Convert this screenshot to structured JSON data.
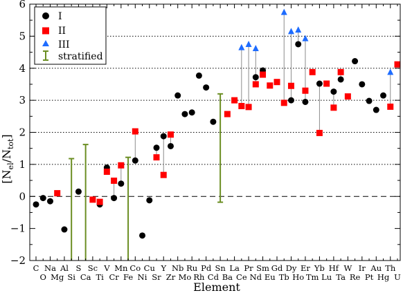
{
  "chart_data": {
    "type": "scatter",
    "xlabel": "Element",
    "ylabel": "[N_el/N_tot]",
    "ylabel_main": "[N",
    "ylabel_sub1": "el",
    "ylabel_mid": "/N",
    "ylabel_sub2": "tot",
    "ylabel_end": "]",
    "ylim": [
      -2,
      6
    ],
    "yticks": [
      -2,
      -1,
      0,
      1,
      2,
      3,
      4,
      5,
      6
    ],
    "dotted_grid": [
      1,
      2,
      3,
      4,
      5
    ],
    "dashed_line": 0,
    "elements": [
      "C",
      "O",
      "Na",
      "Mg",
      "Al",
      "Si",
      "S",
      "Ca",
      "Sc",
      "Ti",
      "V",
      "Cr",
      "Mn",
      "Fe",
      "Co",
      "Ni",
      "Cu",
      "Sr",
      "Y",
      "Zr",
      "Nb",
      "Mo",
      "Ru",
      "Rh",
      "Pd",
      "Cd",
      "Sn",
      "Ba",
      "La",
      "Ce",
      "Pr",
      "Nd",
      "Sm",
      "Eu",
      "Gd",
      "Tb",
      "Dy",
      "Ho",
      "Er",
      "Tm",
      "Yb",
      "Lu",
      "Hf",
      "Ta",
      "W",
      "Re",
      "Ir",
      "Pt",
      "Au",
      "Hg",
      "Th",
      "U"
    ],
    "legend": {
      "position": "top-left",
      "entries": [
        {
          "label": "I",
          "marker": "circle",
          "color": "#000000"
        },
        {
          "label": "II",
          "marker": "square",
          "color": "#ff0000"
        },
        {
          "label": "III",
          "marker": "triangle",
          "color": "#1e6cff"
        },
        {
          "label": "stratified",
          "marker": "errorbar",
          "color": "#6b8e23"
        }
      ]
    },
    "series": [
      {
        "name": "I",
        "marker": "circle",
        "color": "#000000",
        "points": [
          {
            "x": "C",
            "y": -0.25
          },
          {
            "x": "O",
            "y": -0.05
          },
          {
            "x": "Na",
            "y": -0.15
          },
          {
            "x": "Al",
            "y": -1.03
          },
          {
            "x": "S",
            "y": 0.15
          },
          {
            "x": "Ti",
            "y": -0.25
          },
          {
            "x": "V",
            "y": 0.9
          },
          {
            "x": "Cr",
            "y": -0.05
          },
          {
            "x": "Mn",
            "y": 0.4
          },
          {
            "x": "Co",
            "y": 1.12
          },
          {
            "x": "Ni",
            "y": -1.22
          },
          {
            "x": "Cu",
            "y": -0.12
          },
          {
            "x": "Sr",
            "y": 1.52
          },
          {
            "x": "Y",
            "y": 1.88
          },
          {
            "x": "Zr",
            "y": 1.57
          },
          {
            "x": "Nb",
            "y": 3.15
          },
          {
            "x": "Mo",
            "y": 2.57
          },
          {
            "x": "Ru",
            "y": 2.62
          },
          {
            "x": "Rh",
            "y": 3.77
          },
          {
            "x": "Pd",
            "y": 3.4
          },
          {
            "x": "Cd",
            "y": 2.33
          },
          {
            "x": "Nd",
            "y": 3.72
          },
          {
            "x": "Sm",
            "y": 3.93
          },
          {
            "x": "Dy",
            "y": 3.0
          },
          {
            "x": "Ho",
            "y": 4.75
          },
          {
            "x": "Er",
            "y": 2.95
          },
          {
            "x": "Yb",
            "y": 3.52
          },
          {
            "x": "Hf",
            "y": 3.27
          },
          {
            "x": "Ta",
            "y": 3.65
          },
          {
            "x": "Re",
            "y": 4.22
          },
          {
            "x": "Ir",
            "y": 3.5
          },
          {
            "x": "Pt",
            "y": 2.98
          },
          {
            "x": "Au",
            "y": 2.7
          },
          {
            "x": "Hg",
            "y": 3.15
          }
        ]
      },
      {
        "name": "II",
        "marker": "square",
        "color": "#ff0000",
        "points": [
          {
            "x": "Mg",
            "y": 0.1
          },
          {
            "x": "Sc",
            "y": -0.1
          },
          {
            "x": "Ti",
            "y": -0.17
          },
          {
            "x": "V",
            "y": 0.77
          },
          {
            "x": "Cr",
            "y": 0.49
          },
          {
            "x": "Mn",
            "y": 0.97
          },
          {
            "x": "Co",
            "y": 2.03
          },
          {
            "x": "Sr",
            "y": 1.22
          },
          {
            "x": "Y",
            "y": 0.67
          },
          {
            "x": "Zr",
            "y": 1.93
          },
          {
            "x": "Ba",
            "y": 2.57
          },
          {
            "x": "La",
            "y": 3.0
          },
          {
            "x": "Ce",
            "y": 2.82
          },
          {
            "x": "Pr",
            "y": 2.79
          },
          {
            "x": "Nd",
            "y": 3.5
          },
          {
            "x": "Sm",
            "y": 3.8
          },
          {
            "x": "Eu",
            "y": 3.46
          },
          {
            "x": "Gd",
            "y": 3.57
          },
          {
            "x": "Tb",
            "y": 2.92
          },
          {
            "x": "Dy",
            "y": 3.45
          },
          {
            "x": "Er",
            "y": 3.3
          },
          {
            "x": "Tm",
            "y": 3.88
          },
          {
            "x": "Yb",
            "y": 1.98
          },
          {
            "x": "Lu",
            "y": 3.52
          },
          {
            "x": "Hf",
            "y": 2.77
          },
          {
            "x": "Ta",
            "y": 3.88
          },
          {
            "x": "W",
            "y": 3.12
          },
          {
            "x": "Th",
            "y": 2.8
          },
          {
            "x": "U",
            "y": 4.12
          }
        ]
      },
      {
        "name": "III",
        "marker": "triangle",
        "color": "#1e6cff",
        "points": [
          {
            "x": "Ce",
            "y": 4.65
          },
          {
            "x": "Pr",
            "y": 4.75
          },
          {
            "x": "Nd",
            "y": 4.62
          },
          {
            "x": "Tb",
            "y": 5.75
          },
          {
            "x": "Dy",
            "y": 5.15
          },
          {
            "x": "Ho",
            "y": 5.2
          },
          {
            "x": "Er",
            "y": 4.93
          },
          {
            "x": "Th",
            "y": 3.88
          }
        ]
      }
    ],
    "stratified": [
      {
        "x": "Si",
        "low": -2.0,
        "high": 1.18
      },
      {
        "x": "Ca",
        "low": -2.0,
        "high": 1.62
      },
      {
        "x": "Fe",
        "low": -2.0,
        "high": 1.22
      },
      {
        "x": "Sn",
        "low": -0.18,
        "high": 3.2
      }
    ]
  }
}
